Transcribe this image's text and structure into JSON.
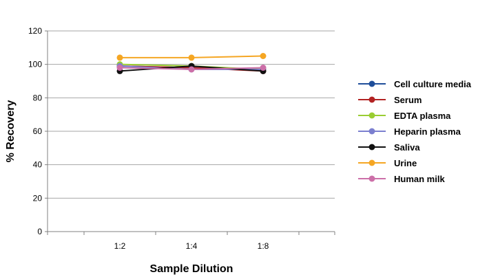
{
  "chart_data": {
    "type": "line",
    "xlabel": "Sample Dilution",
    "ylabel": "% Recovery",
    "categories": [
      "1:2",
      "1:4",
      "1:8"
    ],
    "ylim": [
      0,
      120
    ],
    "yticks": [
      0,
      20,
      40,
      60,
      80,
      100,
      120
    ],
    "grid": true,
    "legend_position": "right",
    "series": [
      {
        "name": "Cell culture media",
        "color": "#1f4e9a",
        "values": [
          99,
          98,
          97
        ]
      },
      {
        "name": "Serum",
        "color": "#b22222",
        "values": [
          99,
          98,
          96
        ]
      },
      {
        "name": "EDTA plasma",
        "color": "#9acd32",
        "values": [
          100,
          99,
          97
        ]
      },
      {
        "name": "Heparin plasma",
        "color": "#7b7fcf",
        "values": [
          99,
          97,
          97
        ]
      },
      {
        "name": "Saliva",
        "color": "#111111",
        "values": [
          96,
          99,
          96
        ]
      },
      {
        "name": "Urine",
        "color": "#f5a623",
        "values": [
          104,
          104,
          105
        ]
      },
      {
        "name": "Human milk",
        "color": "#cc6fa8",
        "values": [
          98,
          97,
          98
        ]
      }
    ]
  }
}
